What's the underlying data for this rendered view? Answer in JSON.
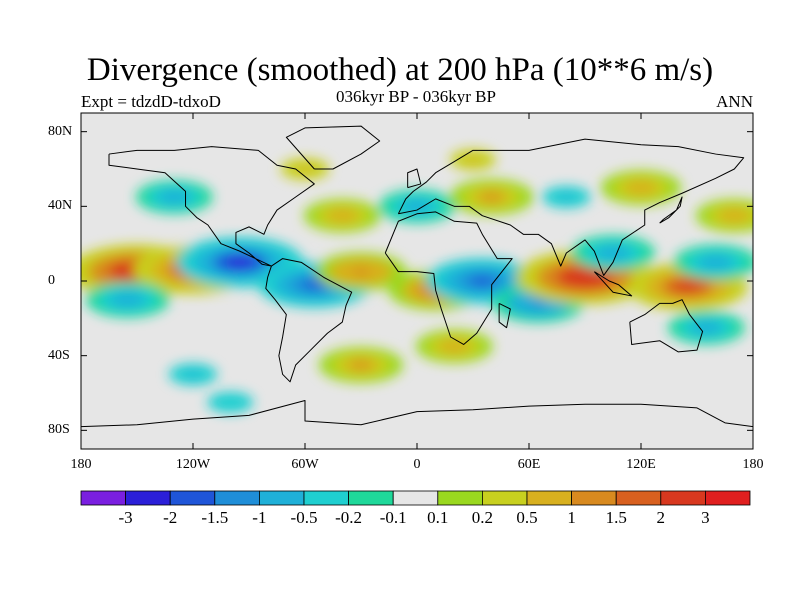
{
  "chart_data": {
    "type": "heatmap",
    "title": "Divergence (smoothed) at 200 hPa (10**6 m/s)",
    "subtitle_left": "Expt = tdzdD-tdxoD",
    "subtitle_center": "036kyr BP - 036kyr BP",
    "subtitle_right": "ANN",
    "x_range": [
      -180,
      180
    ],
    "y_range": [
      -90,
      90
    ],
    "x_ticks": [
      {
        "value": -180,
        "label": "180"
      },
      {
        "value": -120,
        "label": "120W"
      },
      {
        "value": -60,
        "label": "60W"
      },
      {
        "value": 0,
        "label": "0"
      },
      {
        "value": 60,
        "label": "60E"
      },
      {
        "value": 120,
        "label": "120E"
      },
      {
        "value": 180,
        "label": "180"
      }
    ],
    "y_ticks": [
      {
        "value": 80,
        "label": "80N"
      },
      {
        "value": 40,
        "label": "40N"
      },
      {
        "value": 0,
        "label": "0"
      },
      {
        "value": -40,
        "label": "40S"
      },
      {
        "value": -80,
        "label": "80S"
      }
    ],
    "colorbar": {
      "levels": [
        "-3",
        "-2",
        "-1.5",
        "-1",
        "-0.5",
        "-0.2",
        "-0.1",
        "0.1",
        "0.2",
        "0.5",
        "1",
        "1.5",
        "2",
        "3"
      ],
      "colors": [
        "#7a1fe0",
        "#2b1fd8",
        "#1f55d8",
        "#1f8ed8",
        "#1fb0d8",
        "#1fcfd0",
        "#1fd89a",
        "#e6e6e6",
        "#9ad81f",
        "#c8d01f",
        "#d8b01f",
        "#d88a1f",
        "#d8601f",
        "#d8381f",
        "#e01f1f"
      ]
    },
    "anomalies": [
      {
        "lon": -150,
        "lat": 5,
        "value": 2.5
      },
      {
        "lon": -120,
        "lat": 6,
        "value": 2.0
      },
      {
        "lon": -95,
        "lat": 10,
        "value": -2.2
      },
      {
        "lon": -55,
        "lat": -2,
        "value": -1.8
      },
      {
        "lon": -30,
        "lat": 5,
        "value": 1.2
      },
      {
        "lon": -155,
        "lat": -10,
        "value": -1.0
      },
      {
        "lon": 10,
        "lat": -5,
        "value": 1.3
      },
      {
        "lon": 35,
        "lat": 0,
        "value": -1.8
      },
      {
        "lon": 65,
        "lat": -12,
        "value": -1.2
      },
      {
        "lon": 90,
        "lat": 2,
        "value": 2.5
      },
      {
        "lon": 105,
        "lat": 15,
        "value": -1.0
      },
      {
        "lon": 145,
        "lat": -3,
        "value": 2.0
      },
      {
        "lon": 160,
        "lat": 10,
        "value": -1.0
      },
      {
        "lon": 155,
        "lat": -25,
        "value": -0.8
      },
      {
        "lon": 0,
        "lat": 40,
        "value": -0.8
      },
      {
        "lon": 40,
        "lat": 45,
        "value": 1.0
      },
      {
        "lon": -40,
        "lat": 35,
        "value": 0.8
      },
      {
        "lon": -60,
        "lat": 60,
        "value": 0.6
      },
      {
        "lon": -30,
        "lat": -45,
        "value": 1.0
      },
      {
        "lon": -120,
        "lat": -50,
        "value": -0.6
      },
      {
        "lon": -130,
        "lat": 45,
        "value": -0.8
      },
      {
        "lon": 120,
        "lat": 50,
        "value": 0.9
      },
      {
        "lon": 80,
        "lat": 45,
        "value": -0.6
      },
      {
        "lon": 20,
        "lat": -35,
        "value": 0.8
      },
      {
        "lon": -100,
        "lat": -65,
        "value": -0.5
      },
      {
        "lon": 30,
        "lat": 65,
        "value": 0.5
      },
      {
        "lon": 170,
        "lat": 35,
        "value": 0.8
      }
    ]
  }
}
